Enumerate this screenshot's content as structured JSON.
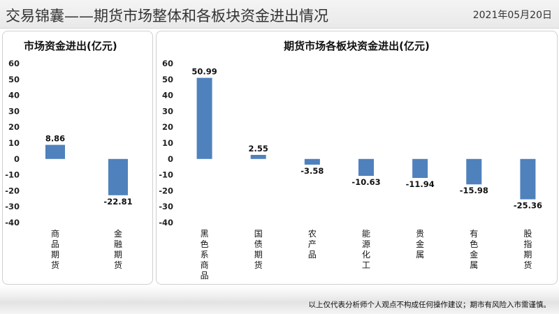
{
  "header": {
    "title": "交易锦囊——期货市场整体和各板块资金进出情况",
    "date": "2021年05月20日"
  },
  "footer": {
    "disclaimer": "以上仅代表分析师个人观点不构成任何操作建议；期市有风险入市需谨慎。"
  },
  "colors": {
    "bar": "#4f81bd"
  },
  "chart_data": [
    {
      "type": "bar",
      "title": "市场资金进出(亿元)",
      "categories": [
        "商品期货",
        "金融期货"
      ],
      "values": [
        8.86,
        -22.81
      ],
      "value_labels": [
        "8.86",
        "-22.81"
      ],
      "ylim": [
        -40,
        60
      ],
      "yticks": [
        60,
        50,
        40,
        30,
        20,
        10,
        0,
        -10,
        -20,
        -30,
        -40
      ],
      "grid": false,
      "legend": "none"
    },
    {
      "type": "bar",
      "title": "期货市场各板块资金进出(亿元)",
      "categories": [
        "黑色系商品",
        "国债期货",
        "农产品",
        "能源化工",
        "贵金属",
        "有色金属",
        "股指期货"
      ],
      "values": [
        50.99,
        2.55,
        -3.58,
        -10.63,
        -11.94,
        -15.98,
        -25.36
      ],
      "value_labels": [
        "50.99",
        "2.55",
        "-3.58",
        "-10.63",
        "-11.94",
        "-15.98",
        "-25.36"
      ],
      "ylim": [
        -40,
        60
      ],
      "yticks": [
        60,
        50,
        40,
        30,
        20,
        10,
        0,
        -10,
        -20,
        -30,
        -40
      ],
      "grid": false,
      "legend": "none"
    }
  ]
}
